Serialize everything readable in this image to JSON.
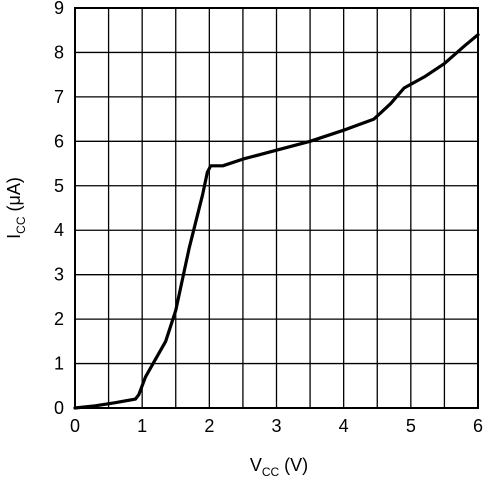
{
  "chart_data": {
    "type": "line",
    "title": "",
    "xlabel": {
      "main": "V",
      "sub": "CC",
      "unit": " (V)"
    },
    "ylabel": {
      "main": "I",
      "sub": "CC",
      "unit": " (μA)"
    },
    "xlim": [
      0,
      6
    ],
    "ylim": [
      0,
      9
    ],
    "x_ticks": [
      0,
      0.5,
      1,
      1.5,
      2,
      2.5,
      3,
      3.5,
      4,
      4.5,
      5,
      5.5,
      6
    ],
    "x_tick_labels": [
      "0",
      "1",
      "2",
      "3",
      "4",
      "5",
      "6"
    ],
    "y_ticks": [
      0,
      1,
      2,
      3,
      4,
      5,
      6,
      7,
      8,
      9
    ],
    "y_tick_labels": [
      "0",
      "1",
      "2",
      "3",
      "4",
      "5",
      "6",
      "7",
      "8",
      "9"
    ],
    "grid": true,
    "series": [
      {
        "color": "#000000",
        "points": [
          [
            0.0,
            0.0
          ],
          [
            0.3,
            0.05
          ],
          [
            0.6,
            0.12
          ],
          [
            0.9,
            0.2
          ],
          [
            0.95,
            0.3
          ],
          [
            1.05,
            0.7
          ],
          [
            1.2,
            1.1
          ],
          [
            1.35,
            1.5
          ],
          [
            1.5,
            2.2
          ],
          [
            1.6,
            2.9
          ],
          [
            1.7,
            3.6
          ],
          [
            1.8,
            4.2
          ],
          [
            1.9,
            4.8
          ],
          [
            1.97,
            5.3
          ],
          [
            2.02,
            5.45
          ],
          [
            2.1,
            5.45
          ],
          [
            2.2,
            5.45
          ],
          [
            2.5,
            5.6
          ],
          [
            3.0,
            5.8
          ],
          [
            3.5,
            6.0
          ],
          [
            4.0,
            6.25
          ],
          [
            4.45,
            6.5
          ],
          [
            4.7,
            6.85
          ],
          [
            4.9,
            7.2
          ],
          [
            5.2,
            7.45
          ],
          [
            5.5,
            7.75
          ],
          [
            5.8,
            8.15
          ],
          [
            6.0,
            8.4
          ]
        ]
      }
    ]
  }
}
